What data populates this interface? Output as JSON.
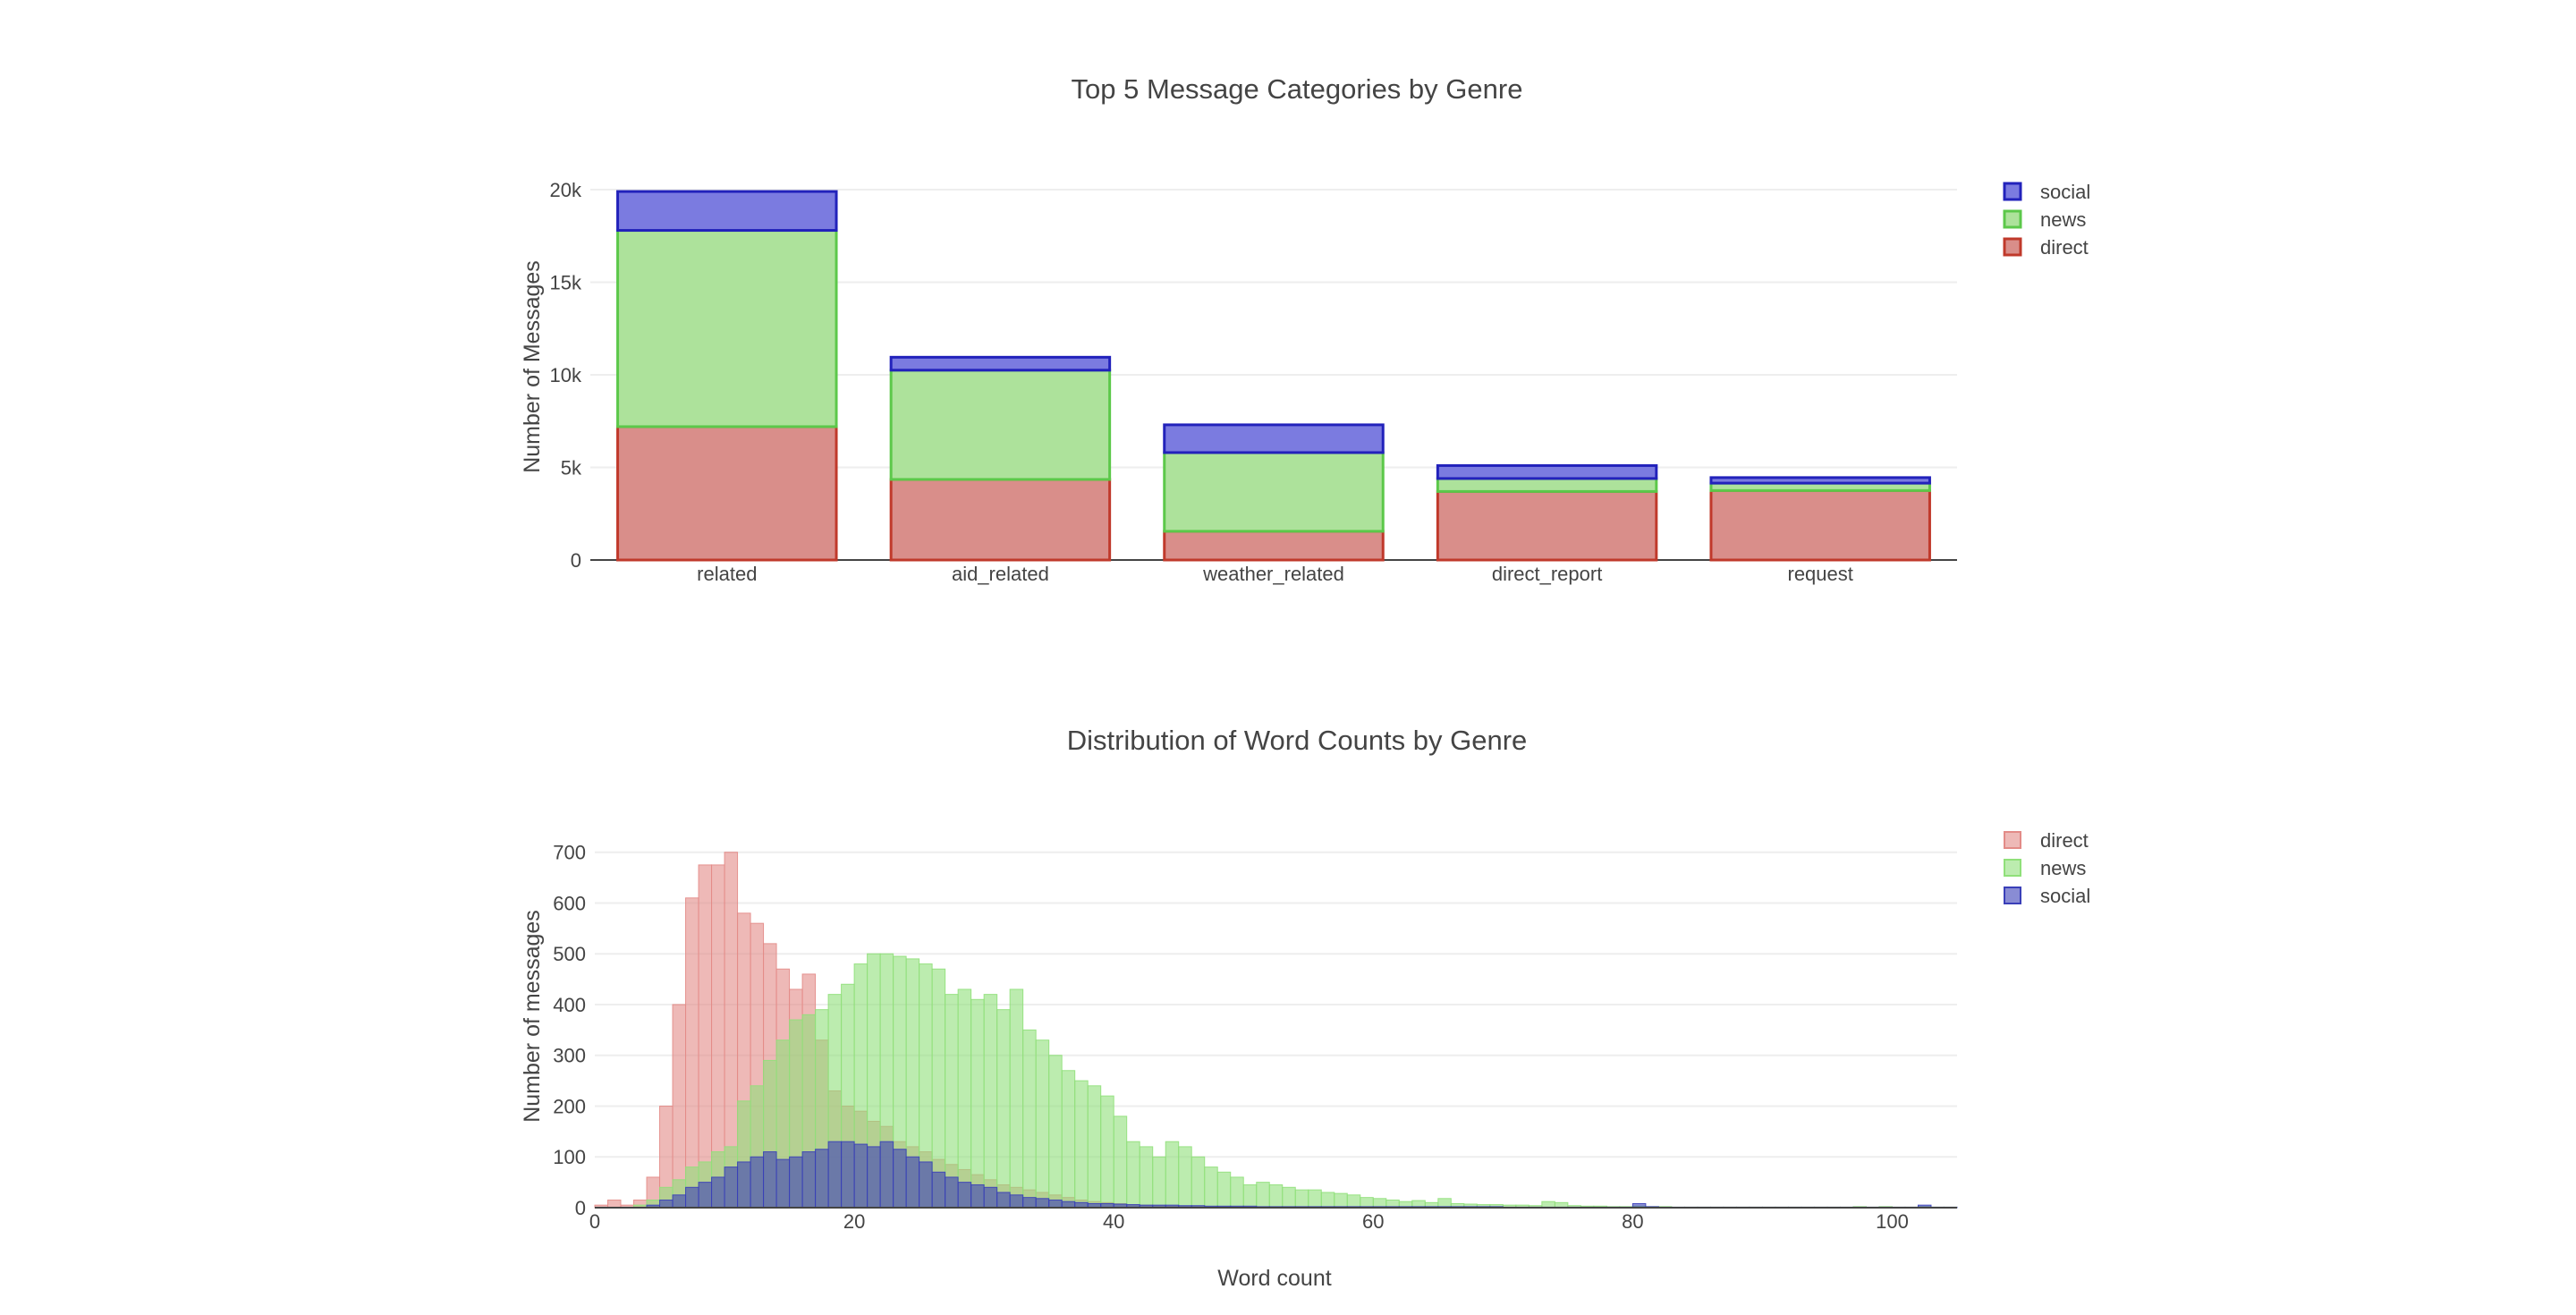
{
  "colors": {
    "direct_fill": "#D98E8A",
    "direct_line": "#C0392B",
    "news_fill": "#ADE29B",
    "news_line": "#5CC84A",
    "social_fill": "#7B7BE0",
    "social_line": "#2222BB",
    "hist_direct": "#E38B87",
    "hist_news": "#90E07A",
    "hist_social": "#3A3FB8"
  },
  "chart_data": [
    {
      "type": "bar",
      "stacked": true,
      "title": "Top 5 Message Categories by Genre",
      "xlabel": "",
      "ylabel": "Number of Messages",
      "categories": [
        "related",
        "aid_related",
        "weather_related",
        "direct_report",
        "request"
      ],
      "ylim": [
        0,
        20000
      ],
      "yticks": [
        0,
        5000,
        10000,
        15000,
        20000
      ],
      "ytick_labels": [
        "0",
        "5k",
        "10k",
        "15k",
        "20k"
      ],
      "legend_position": "right",
      "series": [
        {
          "name": "direct",
          "values": [
            7200,
            4350,
            1550,
            3700,
            3750
          ]
        },
        {
          "name": "news",
          "values": [
            10600,
            5900,
            4250,
            700,
            400
          ]
        },
        {
          "name": "social",
          "values": [
            2100,
            700,
            1500,
            700,
            300
          ]
        }
      ],
      "legend_order": [
        "social",
        "news",
        "direct"
      ]
    },
    {
      "type": "histogram",
      "barmode": "overlay",
      "title": "Distribution of Word Counts by Genre",
      "xlabel": "Word count",
      "ylabel": "Number of messages",
      "xlim": [
        0,
        105
      ],
      "ylim": [
        0,
        740
      ],
      "xticks": [
        0,
        20,
        40,
        60,
        80,
        100
      ],
      "yticks": [
        0,
        100,
        200,
        300,
        400,
        500,
        600,
        700
      ],
      "legend_position": "right",
      "legend_order": [
        "direct",
        "news",
        "social"
      ],
      "bin_width": 1,
      "series": [
        {
          "name": "direct",
          "start": 0,
          "values": [
            5,
            15,
            5,
            15,
            60,
            200,
            400,
            610,
            675,
            675,
            700,
            580,
            560,
            520,
            470,
            430,
            460,
            330,
            230,
            200,
            190,
            170,
            160,
            130,
            120,
            110,
            95,
            85,
            75,
            65,
            55,
            45,
            40,
            35,
            30,
            25,
            20,
            15,
            12,
            10,
            8,
            6,
            5,
            4,
            3,
            2,
            2,
            1,
            1,
            1,
            1
          ]
        },
        {
          "name": "news",
          "start": 0,
          "values": [
            0,
            0,
            0,
            5,
            15,
            40,
            55,
            80,
            90,
            110,
            120,
            210,
            240,
            290,
            330,
            370,
            380,
            390,
            420,
            440,
            480,
            500,
            500,
            495,
            490,
            480,
            470,
            420,
            430,
            410,
            420,
            390,
            430,
            350,
            330,
            300,
            270,
            250,
            240,
            220,
            180,
            130,
            120,
            100,
            130,
            120,
            100,
            80,
            70,
            60,
            45,
            50,
            45,
            40,
            35,
            35,
            30,
            28,
            25,
            20,
            18,
            15,
            12,
            14,
            10,
            18,
            8,
            7,
            6,
            6,
            5,
            5,
            4,
            12,
            10,
            4,
            3,
            3,
            2,
            2,
            3,
            2,
            2,
            1,
            1,
            1,
            1,
            1,
            1,
            1,
            1,
            1,
            1,
            1,
            1,
            1,
            1,
            2,
            1,
            2,
            1,
            1,
            2,
            1,
            1
          ]
        },
        {
          "name": "social",
          "start": 0,
          "values": [
            0,
            0,
            0,
            0,
            5,
            15,
            25,
            40,
            50,
            60,
            80,
            90,
            100,
            110,
            95,
            100,
            110,
            115,
            130,
            130,
            125,
            120,
            130,
            115,
            100,
            90,
            70,
            60,
            50,
            45,
            40,
            30,
            25,
            20,
            18,
            15,
            12,
            10,
            8,
            8,
            7,
            6,
            5,
            5,
            5,
            4,
            4,
            3,
            3,
            3,
            3,
            2,
            2,
            2,
            2,
            2,
            2,
            2,
            2,
            2,
            2,
            2,
            2,
            2,
            2,
            2,
            2,
            2,
            2,
            2,
            1,
            1,
            1,
            1,
            1,
            1,
            1,
            1,
            1,
            1,
            8,
            2,
            1,
            1,
            1,
            1,
            1,
            1,
            1,
            1,
            1,
            1,
            1,
            1,
            1,
            1,
            1,
            1,
            1,
            1,
            1,
            1,
            5,
            1,
            1
          ]
        }
      ]
    }
  ]
}
